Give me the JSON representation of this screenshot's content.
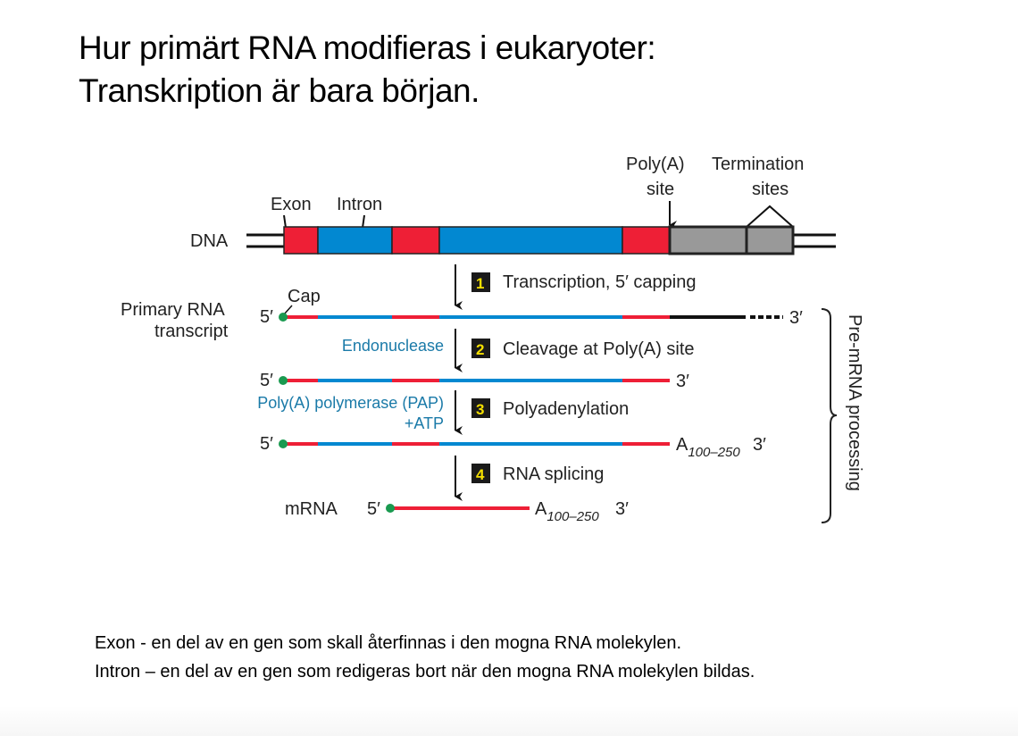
{
  "title": {
    "line1": "Hur primärt RNA modifieras i eukaryoter:",
    "line2": "Transkription är bara början."
  },
  "diagram": {
    "labels": {
      "dna": "DNA",
      "exon": "Exon",
      "intron": "Intron",
      "polya_site_1": "Poly(A)",
      "polya_site_2": "site",
      "termination_1": "Termination",
      "termination_2": "sites",
      "primary_1": "Primary RNA",
      "primary_2": "transcript",
      "cap": "Cap",
      "five_prime": "5′",
      "three_prime": "3′",
      "endonuclease": "Endonuclease",
      "pap_1": "Poly(A) polymerase (PAP)",
      "pap_2": "+ATP",
      "polya_tail": "A",
      "polya_sub": "100–250",
      "mrna": "mRNA",
      "bracket": "Pre-mRNA processing"
    },
    "steps": [
      {
        "num": "1",
        "label": "Transcription, 5′ capping"
      },
      {
        "num": "2",
        "label": "Cleavage at Poly(A) site"
      },
      {
        "num": "3",
        "label": "Polyadenylation"
      },
      {
        "num": "4",
        "label": "RNA splicing"
      }
    ],
    "colors": {
      "exon": "#ee1f36",
      "intron": "#0288d1",
      "flank": "#999999",
      "cap": "#1a9a50",
      "label_blue": "#1a7aa8"
    }
  },
  "definitions": {
    "exon": "Exon -  en del av en gen som skall återfinnas i den mogna RNA molekylen.",
    "intron": "Intron – en del av en gen som redigeras bort när den mogna RNA molekylen bildas."
  }
}
